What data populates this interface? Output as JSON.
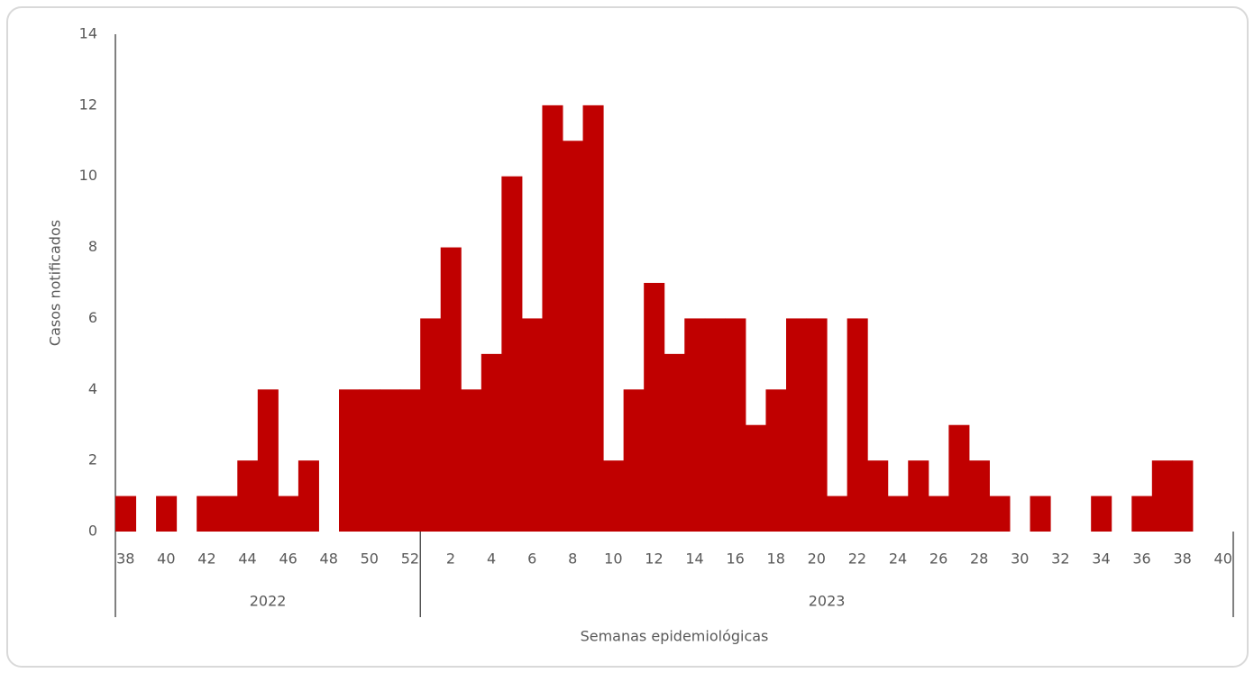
{
  "chart_data": {
    "type": "bar",
    "color": "#c00000",
    "y_label": "Casos notificados",
    "x_label": "Semanas epidemiológicas",
    "ylim": [
      0,
      14
    ],
    "yticks": [
      0,
      2,
      4,
      6,
      8,
      10,
      12,
      14
    ],
    "groups": [
      {
        "label": "2022",
        "categories": [
          "38",
          null,
          "40",
          null,
          "42",
          null,
          "44",
          null,
          "46",
          null,
          "48",
          null,
          "50",
          null,
          "52"
        ],
        "values": [
          1,
          0,
          1,
          0,
          1,
          1,
          2,
          4,
          1,
          2,
          0,
          4,
          4,
          4,
          4
        ]
      },
      {
        "label": "2023",
        "categories": [
          null,
          "2",
          null,
          "4",
          null,
          "6",
          null,
          "8",
          null,
          "10",
          null,
          "12",
          null,
          "14",
          null,
          "16",
          null,
          "18",
          null,
          "20",
          null,
          "22",
          null,
          "24",
          null,
          "26",
          null,
          "28",
          null,
          "30",
          null,
          "32",
          null,
          "34",
          null,
          "36",
          null,
          "38",
          null,
          "40"
        ],
        "values": [
          6,
          8,
          4,
          5,
          10,
          6,
          12,
          11,
          12,
          2,
          4,
          7,
          5,
          6,
          6,
          6,
          3,
          4,
          6,
          6,
          1,
          6,
          2,
          1,
          2,
          1,
          3,
          2,
          1,
          0,
          1,
          0,
          0,
          1,
          0,
          1,
          2,
          2,
          0,
          0
        ]
      }
    ]
  }
}
